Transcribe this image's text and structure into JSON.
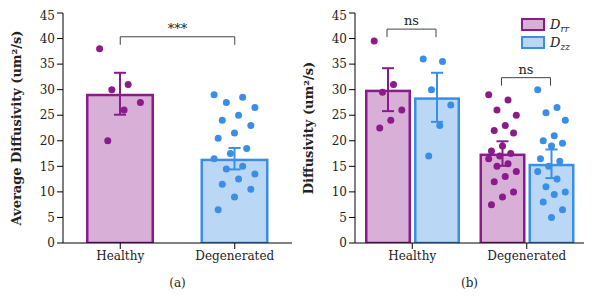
{
  "chart_data": [
    {
      "type": "bar",
      "title": "(a)",
      "ylabel": "Average Diffusivity (um²/s)",
      "categories": [
        "Healthy",
        "Degenerated"
      ],
      "values": [
        29.2,
        16.5
      ],
      "errors": [
        4.1,
        2.1
      ],
      "points": [
        [
          38,
          31,
          30,
          27.5,
          26,
          20
        ],
        [
          29,
          28.5,
          27.5,
          26.5,
          25,
          24,
          23,
          21.5,
          20.5,
          18.5,
          17.5,
          16.5,
          15,
          14.5,
          13.5,
          12.5,
          11.5,
          10.5,
          9,
          6.5
        ]
      ],
      "colors": [
        "#8b1a8b",
        "#3a8ee6"
      ],
      "ylim": [
        0,
        45
      ],
      "yticks": [
        0,
        5,
        10,
        15,
        20,
        25,
        30,
        35,
        40,
        45
      ],
      "grid": false,
      "annotations": [
        {
          "text": "***",
          "between": [
            "Healthy",
            "Degenerated"
          ]
        }
      ]
    },
    {
      "type": "bar",
      "title": "(b)",
      "ylabel": "Diffusivity (um²/s)",
      "categories": [
        "Healthy",
        "Degenerated"
      ],
      "series": [
        {
          "name": "Drr",
          "color": "#8b1a8b",
          "values": [
            30,
            17.5
          ],
          "errors": [
            4.2,
            2.4
          ],
          "points": [
            [
              39.5,
              31,
              29.5,
              26,
              24,
              22.5
            ],
            [
              29,
              28,
              26,
              25,
              23,
              22,
              21.5,
              19,
              18,
              17.5,
              17,
              16.5,
              15.5,
              15,
              14,
              13,
              12,
              10,
              9,
              7.5
            ]
          ]
        },
        {
          "name": "Dzz",
          "color": "#3a8ee6",
          "values": [
            28.5,
            15.5
          ],
          "errors": [
            4.8,
            2.8
          ],
          "points": [
            [
              36,
              35.5,
              30,
              27,
              23,
              17
            ],
            [
              30,
              26.5,
              25.5,
              24,
              21,
              20,
              19.5,
              19,
              16.5,
              16,
              15,
              14,
              12.5,
              11,
              10,
              9.5,
              8,
              6.5,
              5
            ]
          ]
        }
      ],
      "ylim": [
        0,
        45
      ],
      "yticks": [
        0,
        5,
        10,
        15,
        20,
        25,
        30,
        35,
        40,
        45
      ],
      "grid": false,
      "legend": "upper right",
      "annotations": [
        {
          "text": "ns",
          "category": "Healthy"
        },
        {
          "text": "ns",
          "category": "Degenerated"
        }
      ]
    }
  ]
}
